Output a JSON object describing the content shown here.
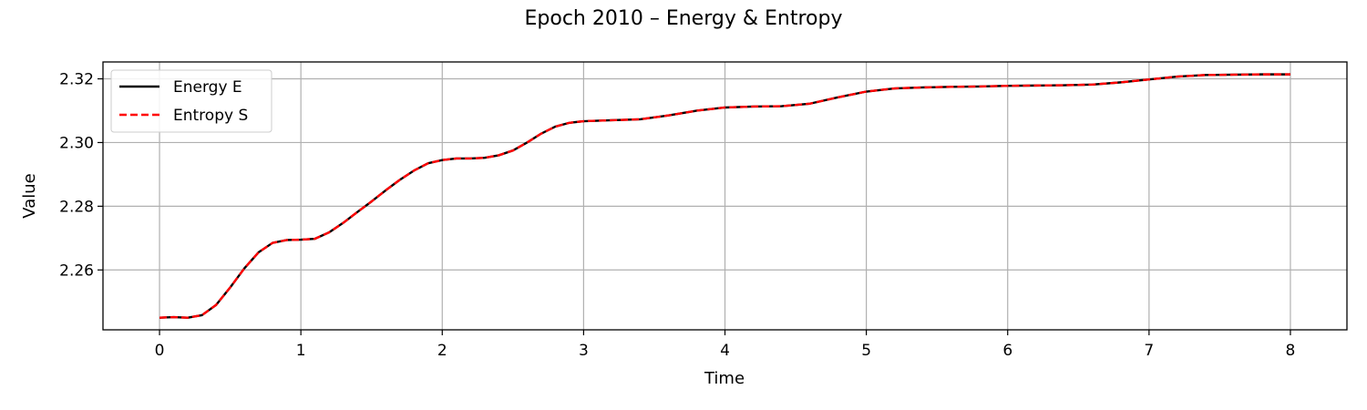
{
  "chart_data": {
    "type": "line",
    "title": "Epoch 2010 – Energy & Entropy",
    "xlabel": "Time",
    "ylabel": "Value",
    "xlim": [
      -0.4,
      8.4
    ],
    "ylim": [
      2.2412,
      2.3253
    ],
    "xticks": [
      0,
      1,
      2,
      3,
      4,
      5,
      6,
      7,
      8
    ],
    "yticks": [
      2.26,
      2.28,
      2.3,
      2.32
    ],
    "ytick_labels": [
      "2.26",
      "2.28",
      "2.30",
      "2.32"
    ],
    "grid": true,
    "legend_position": "top-left",
    "x": [
      0,
      0.1,
      0.2,
      0.3,
      0.4,
      0.5,
      0.6,
      0.7,
      0.8,
      0.9,
      1.0,
      1.1,
      1.2,
      1.3,
      1.4,
      1.5,
      1.6,
      1.7,
      1.8,
      1.9,
      2.0,
      2.1,
      2.2,
      2.3,
      2.4,
      2.5,
      2.6,
      2.7,
      2.8,
      2.9,
      3.0,
      3.2,
      3.4,
      3.6,
      3.8,
      4.0,
      4.2,
      4.4,
      4.6,
      4.8,
      5.0,
      5.2,
      5.4,
      5.6,
      5.8,
      6.0,
      6.2,
      6.4,
      6.6,
      6.8,
      7.0,
      7.2,
      7.4,
      7.6,
      7.8,
      8.0
    ],
    "series": [
      {
        "name": "Energy E",
        "color": "#000000",
        "dash": "solid",
        "values": [
          2.245,
          2.2452,
          2.245,
          2.2458,
          2.249,
          2.2545,
          2.2605,
          2.2655,
          2.2685,
          2.2694,
          2.2695,
          2.2698,
          2.2718,
          2.2748,
          2.2782,
          2.2815,
          2.285,
          2.2883,
          2.2912,
          2.2935,
          2.2945,
          2.295,
          2.295,
          2.2952,
          2.296,
          2.2975,
          2.3,
          2.3028,
          2.305,
          2.3062,
          2.3067,
          2.307,
          2.3073,
          2.3085,
          2.31,
          2.311,
          2.3113,
          2.3114,
          2.3122,
          2.3142,
          2.316,
          2.317,
          2.3173,
          2.3175,
          2.3176,
          2.3178,
          2.3179,
          2.318,
          2.3182,
          2.3189,
          2.3198,
          2.3207,
          2.3212,
          2.3213,
          2.3214,
          2.3214
        ]
      },
      {
        "name": "Entropy S",
        "color": "#ff0000",
        "dash": "dashed",
        "values": [
          2.245,
          2.2452,
          2.245,
          2.2458,
          2.249,
          2.2545,
          2.2605,
          2.2655,
          2.2685,
          2.2694,
          2.2695,
          2.2698,
          2.2718,
          2.2748,
          2.2782,
          2.2815,
          2.285,
          2.2883,
          2.2912,
          2.2935,
          2.2945,
          2.295,
          2.295,
          2.2952,
          2.296,
          2.2975,
          2.3,
          2.3028,
          2.305,
          2.3062,
          2.3067,
          2.307,
          2.3073,
          2.3085,
          2.31,
          2.311,
          2.3113,
          2.3114,
          2.3122,
          2.3142,
          2.316,
          2.317,
          2.3173,
          2.3175,
          2.3176,
          2.3178,
          2.3179,
          2.318,
          2.3182,
          2.3189,
          2.3198,
          2.3207,
          2.3212,
          2.3213,
          2.3214,
          2.3214
        ]
      }
    ]
  }
}
